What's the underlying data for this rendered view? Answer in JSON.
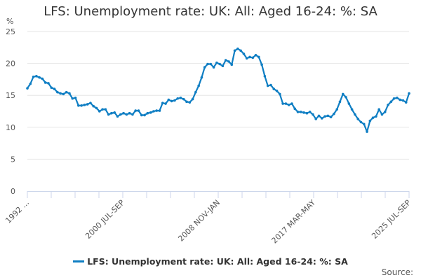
{
  "chart_data": {
    "type": "line",
    "title": "LFS: Unemployment rate: UK: All: Aged 16-24: %: SA",
    "ylabel": "%",
    "xlabel": "",
    "ylim": [
      0,
      25
    ],
    "yticks": [
      0,
      5,
      10,
      15,
      20,
      25
    ],
    "xtick_labels": [
      "1992 ...",
      "2000 JUL-SEP",
      "2008 NOV-JAN",
      "2017 MAR-MAY",
      "2025 JUL-SEP"
    ],
    "x_range_years": [
      1992.2,
      2025.6
    ],
    "grid": true,
    "legend_position": "bottom",
    "series": [
      {
        "name": "LFS: Unemployment rate: UK: All: Aged 16-24: %: SA",
        "color": "#0f7ec3",
        "values": [
          16.1,
          16.8,
          17.9,
          18.0,
          17.8,
          17.6,
          17.0,
          16.9,
          16.2,
          16.0,
          15.5,
          15.3,
          15.2,
          15.5,
          15.3,
          14.5,
          14.6,
          13.4,
          13.4,
          13.5,
          13.6,
          13.8,
          13.3,
          13.0,
          12.5,
          12.8,
          12.8,
          12.0,
          12.2,
          12.3,
          11.7,
          12.0,
          12.2,
          12.0,
          12.2,
          12.0,
          12.6,
          12.6,
          11.9,
          11.9,
          12.2,
          12.3,
          12.5,
          12.6,
          12.6,
          13.8,
          13.7,
          14.3,
          14.1,
          14.2,
          14.5,
          14.6,
          14.4,
          14.0,
          13.9,
          14.4,
          15.5,
          16.5,
          17.8,
          19.4,
          19.9,
          19.9,
          19.4,
          20.1,
          19.9,
          19.6,
          20.5,
          20.3,
          19.8,
          22.0,
          22.3,
          22.0,
          21.5,
          20.8,
          21.0,
          20.9,
          21.3,
          21.0,
          19.8,
          18.0,
          16.5,
          16.6,
          16.0,
          15.7,
          15.2,
          13.7,
          13.7,
          13.5,
          13.7,
          12.9,
          12.4,
          12.4,
          12.3,
          12.2,
          12.4,
          12.0,
          11.3,
          11.8,
          11.4,
          11.7,
          11.8,
          11.6,
          12.1,
          12.8,
          14.0,
          15.2,
          14.7,
          13.7,
          12.8,
          12.0,
          11.3,
          10.8,
          10.5,
          9.3,
          11.0,
          11.5,
          11.7,
          12.8,
          12.0,
          12.4,
          13.5,
          14.0,
          14.5,
          14.6,
          14.3,
          14.2,
          13.9,
          15.3
        ]
      }
    ]
  },
  "footer": {
    "source_label": "Source:"
  }
}
